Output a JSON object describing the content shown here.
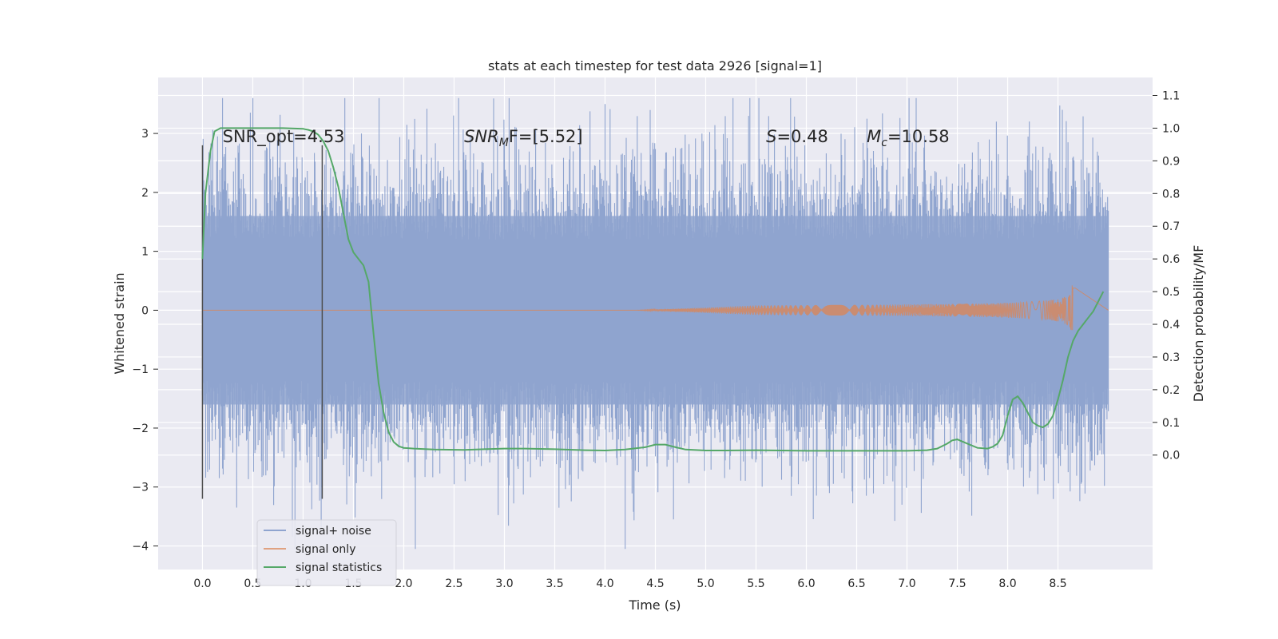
{
  "chart_data": {
    "type": "line",
    "title": "stats at each timestep for test data 2926 [signal=1]",
    "xlabel": "Time (s)",
    "ylabel": "Whitened strain",
    "ylabel_right": "Detection probability/MF",
    "xlim": [
      -0.44,
      9.44
    ],
    "ylim": [
      -4.4,
      3.95
    ],
    "ylim_right": [
      -0.35,
      1.155
    ],
    "x_ticks": [
      "0.0",
      "0.5",
      "1.0",
      "1.5",
      "2.0",
      "2.5",
      "3.0",
      "3.5",
      "4.0",
      "4.5",
      "5.0",
      "5.5",
      "6.0",
      "6.5",
      "7.0",
      "7.5",
      "8.0",
      "8.5"
    ],
    "y_ticks": [
      "3",
      "2",
      "1",
      "0",
      "−1",
      "−2",
      "−3",
      "−4"
    ],
    "y_right_ticks": [
      "1.1",
      "1.0",
      "0.9",
      "0.8",
      "0.7",
      "0.6",
      "0.5",
      "0.4",
      "0.3",
      "0.2",
      "0.1",
      "0.0"
    ],
    "grid": true,
    "legend_position": "lower-left",
    "colors": {
      "background": "#eaeaf2",
      "grid": "#ffffff",
      "noise": "#8fa4cf",
      "signal": "#dd8452",
      "stat": "#55a868",
      "vline": "#4d4d4d"
    },
    "annotations": [
      {
        "text": "SNR_opt=4.53",
        "x": 0.2,
        "y": 2.85
      },
      {
        "text": "SNR",
        "sub": "M",
        "rest": "F=[5.52]",
        "x": 2.6,
        "y": 2.85
      },
      {
        "text": "S",
        "rest": "=0.48",
        "x": 5.6,
        "y": 2.85
      },
      {
        "text": "M",
        "sub": "c",
        "rest": "=10.58",
        "x": 6.6,
        "y": 2.85
      }
    ],
    "vlines": [
      {
        "x": 0.0,
        "y0": -3.2,
        "y1": 2.8
      },
      {
        "x": 1.19,
        "y0": -3.2,
        "y1": 2.8
      }
    ],
    "series": [
      {
        "name": "signal+ noise",
        "kind": "noise_band",
        "x_range": [
          0.0,
          9.0
        ],
        "core_band": [
          -1.0,
          1.0
        ],
        "outer_band": [
          -1.6,
          1.6
        ],
        "spike_max": 3.6,
        "spike_min": -4.05
      },
      {
        "name": "signal only",
        "kind": "chirp",
        "x_range": [
          0.0,
          8.67
        ],
        "onset": 4.3,
        "peak_time": 8.65,
        "peak_amplitude": 0.62
      },
      {
        "name": "signal statistics",
        "kind": "line",
        "axis": "right",
        "x": [
          0.0,
          0.03,
          0.08,
          0.12,
          0.18,
          0.25,
          0.4,
          0.6,
          0.8,
          1.0,
          1.05,
          1.1,
          1.15,
          1.2,
          1.25,
          1.3,
          1.35,
          1.4,
          1.45,
          1.5,
          1.55,
          1.6,
          1.65,
          1.7,
          1.75,
          1.8,
          1.85,
          1.9,
          1.95,
          2.0,
          2.1,
          2.3,
          2.6,
          2.8,
          3.0,
          3.2,
          3.5,
          3.8,
          4.0,
          4.2,
          4.4,
          4.5,
          4.6,
          4.7,
          4.8,
          5.0,
          5.2,
          5.5,
          6.0,
          6.5,
          7.0,
          7.2,
          7.3,
          7.4,
          7.45,
          7.5,
          7.6,
          7.7,
          7.8,
          7.85,
          7.9,
          7.95,
          8.0,
          8.05,
          8.1,
          8.15,
          8.2,
          8.25,
          8.3,
          8.35,
          8.4,
          8.45,
          8.5,
          8.55,
          8.6,
          8.65,
          8.7,
          8.75,
          8.8,
          8.85,
          8.9,
          8.95
        ],
        "y": [
          0.6,
          0.8,
          0.93,
          0.99,
          1.0,
          1.0,
          1.0,
          1.0,
          1.0,
          0.998,
          0.995,
          0.99,
          0.98,
          0.96,
          0.93,
          0.88,
          0.82,
          0.74,
          0.66,
          0.62,
          0.6,
          0.58,
          0.53,
          0.37,
          0.22,
          0.13,
          0.07,
          0.04,
          0.027,
          0.022,
          0.02,
          0.017,
          0.016,
          0.018,
          0.02,
          0.02,
          0.018,
          0.015,
          0.014,
          0.017,
          0.024,
          0.032,
          0.032,
          0.024,
          0.017,
          0.014,
          0.014,
          0.015,
          0.013,
          0.013,
          0.013,
          0.015,
          0.02,
          0.035,
          0.045,
          0.048,
          0.035,
          0.022,
          0.02,
          0.025,
          0.035,
          0.06,
          0.12,
          0.17,
          0.18,
          0.16,
          0.13,
          0.1,
          0.09,
          0.085,
          0.095,
          0.12,
          0.17,
          0.23,
          0.3,
          0.35,
          0.38,
          0.4,
          0.42,
          0.44,
          0.47,
          0.5
        ]
      }
    ]
  }
}
